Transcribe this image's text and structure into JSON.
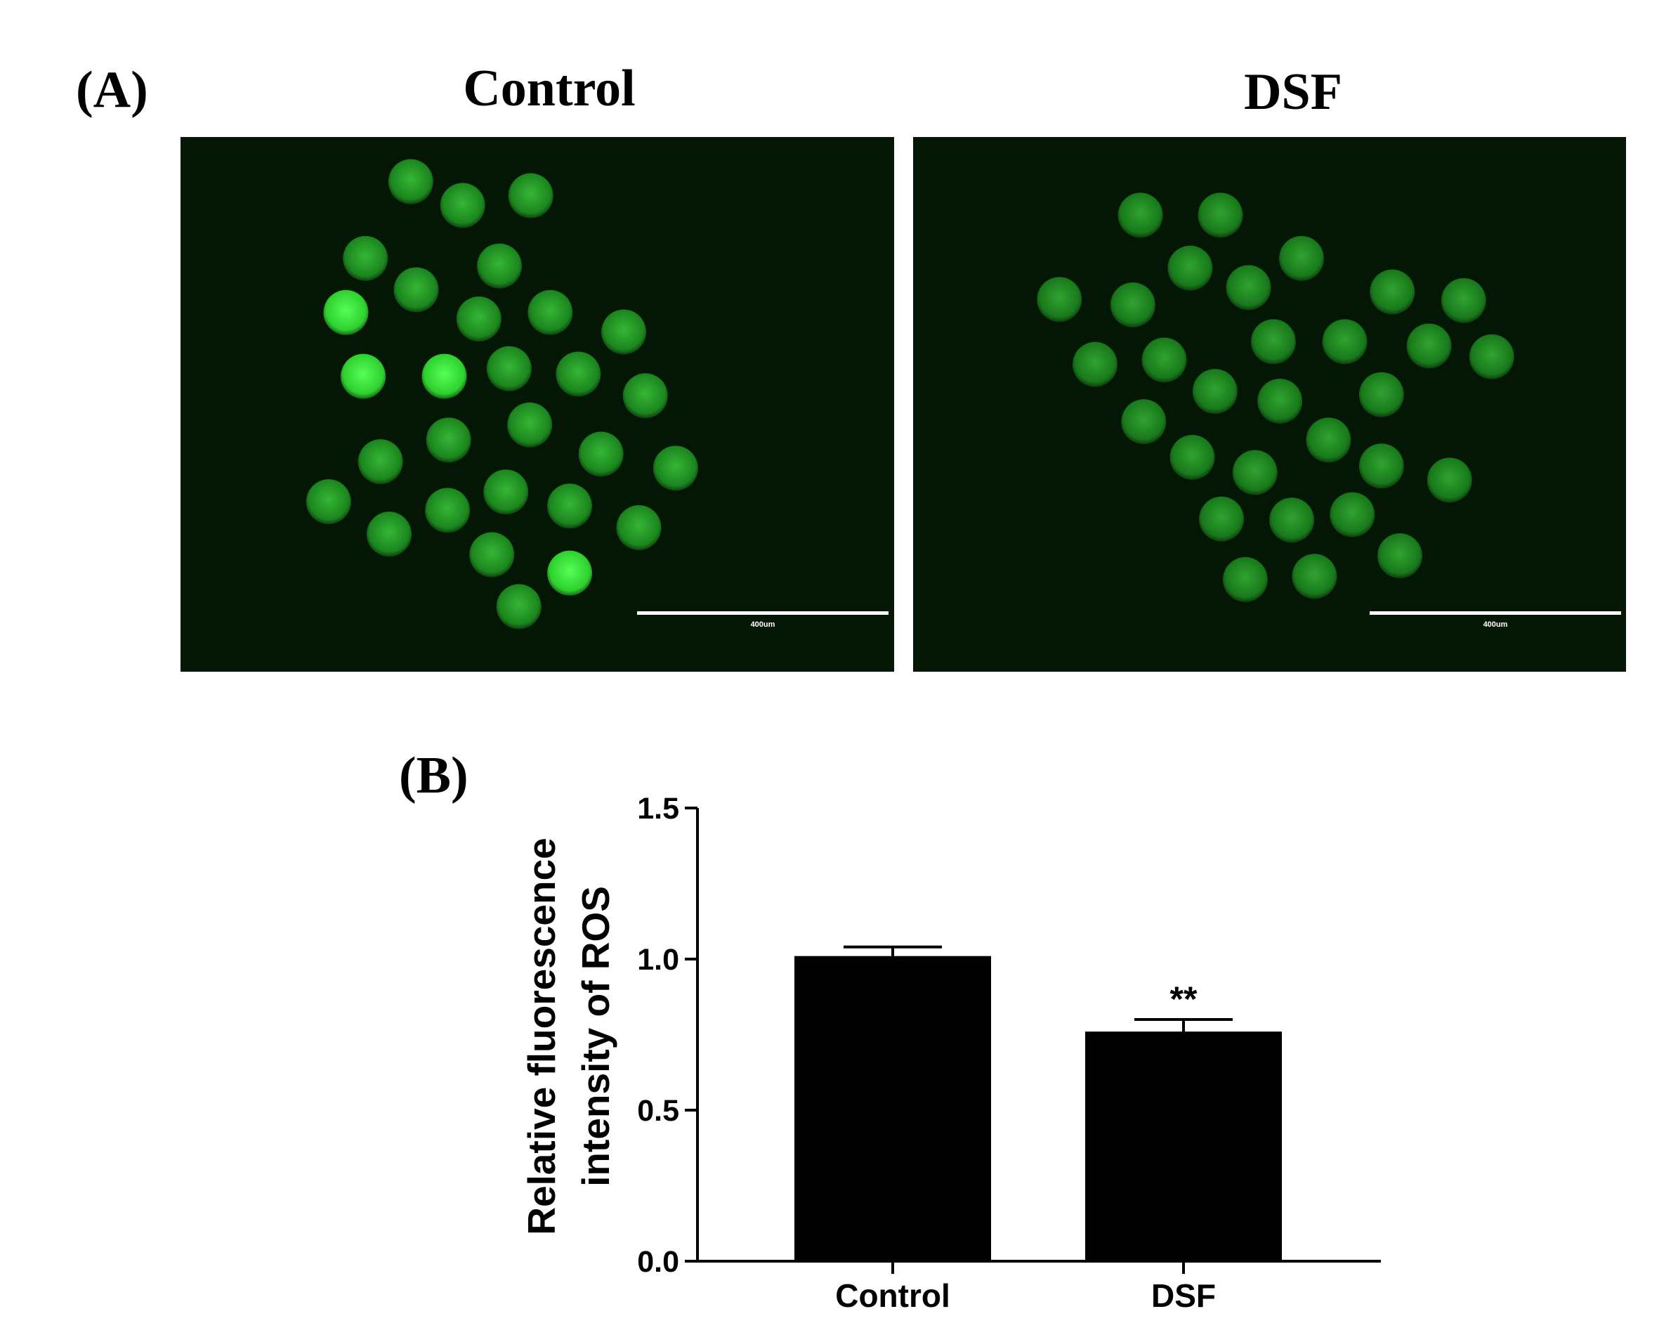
{
  "panel_a": {
    "label": "(A)",
    "images": [
      {
        "title": "Control",
        "scale_bar": "400um"
      },
      {
        "title": "DSF",
        "scale_bar": "400um"
      }
    ]
  },
  "chart_data": {
    "type": "bar",
    "panel_label": "(B)",
    "y_label": [
      "Relative fluorescence",
      "intensity of ROS"
    ],
    "categories": [
      "Control",
      "DSF"
    ],
    "values": [
      1.01,
      0.76
    ],
    "errors": [
      0.03,
      0.04
    ],
    "annotations": [
      null,
      "**"
    ],
    "color": "#000000",
    "ylim": [
      0,
      1.5
    ],
    "yticks": [
      {
        "value": 0,
        "label": "0.0"
      },
      0.5,
      {
        "value": 1,
        "label": "1.0"
      },
      1.5
    ],
    "grid": false
  }
}
